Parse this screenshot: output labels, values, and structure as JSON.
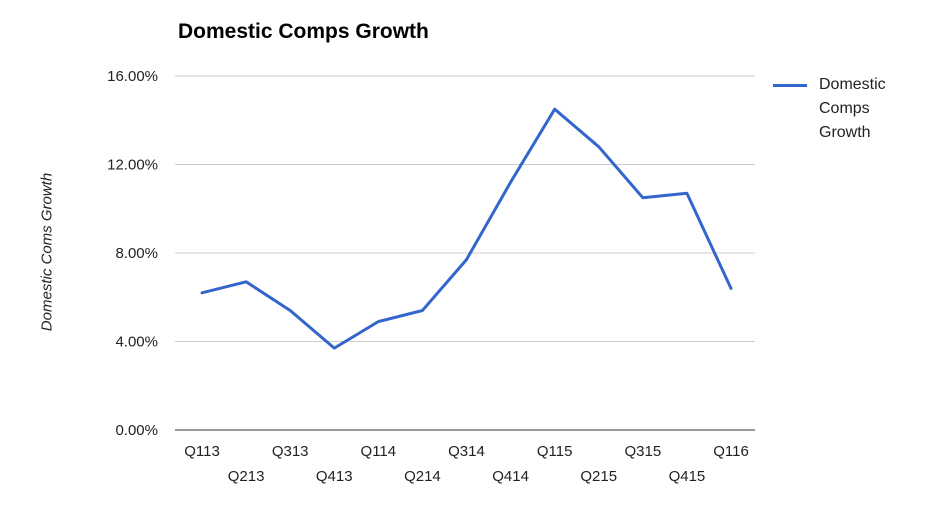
{
  "chart_data": {
    "type": "line",
    "title": "Domestic Comps Growth",
    "xlabel": "",
    "ylabel": "Domestic Coms Growth",
    "categories": [
      "Q113",
      "Q213",
      "Q313",
      "Q413",
      "Q114",
      "Q214",
      "Q314",
      "Q414",
      "Q115",
      "Q215",
      "Q315",
      "Q415",
      "Q116"
    ],
    "series": [
      {
        "name": "Domestic Comps Growth",
        "color": "#3366cc",
        "values": [
          6.2,
          6.7,
          5.4,
          3.7,
          4.9,
          5.4,
          7.7,
          11.2,
          14.5,
          12.8,
          10.5,
          10.7,
          6.4
        ]
      }
    ],
    "ylim": [
      0,
      16
    ],
    "yticks": [
      0,
      4,
      8,
      12,
      16
    ],
    "ytick_labels": [
      "0.00%",
      "4.00%",
      "8.00%",
      "12.00%",
      "16.00%"
    ],
    "grid": true,
    "legend": "right"
  }
}
